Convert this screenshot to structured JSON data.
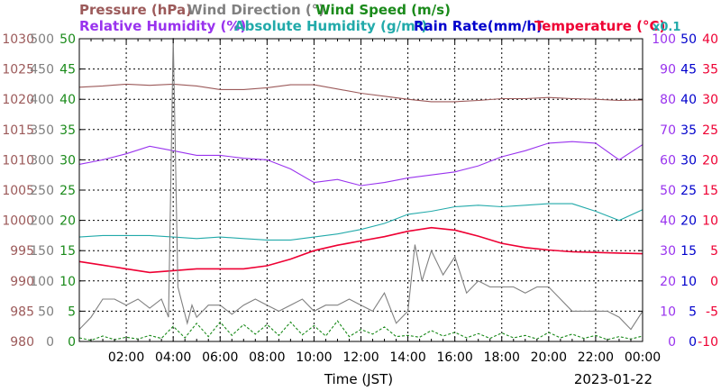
{
  "chart_data": {
    "type": "line",
    "date_label": "2023-01-22",
    "xlabel": "Time (JST)",
    "x_ticks": [
      "02:00",
      "04:00",
      "06:00",
      "08:00",
      "10:00",
      "12:00",
      "14:00",
      "16:00",
      "18:00",
      "20:00",
      "22:00",
      "00:00"
    ],
    "x_range_hours": [
      0,
      24
    ],
    "grid": true,
    "headers": {
      "row1": [
        {
          "key": "pressure",
          "text": "Pressure (hPa)",
          "color": "#9c5a5a"
        },
        {
          "key": "wind_dir",
          "text": "Wind Direction (°)",
          "color": "#808080"
        },
        {
          "key": "wind_speed",
          "text": "Wind Speed (m/s)",
          "color": "#1a8a1a"
        }
      ],
      "row2": [
        {
          "key": "rh",
          "text": "Relative Humidity (%)",
          "color": "#9933ee"
        },
        {
          "key": "ah",
          "text": "Absolute Humidity (g/m³)",
          "color": "#22aaaa"
        },
        {
          "key": "rain",
          "text": "Rain Rate(mm/h)",
          "color": "#0000cc"
        },
        {
          "key": "temp",
          "text": "Temperature (°C)",
          "color": "#ee0033"
        },
        {
          "key": "scale",
          "text": "x0.1",
          "color": "#22aaaa"
        }
      ]
    },
    "axes": {
      "pressure": {
        "ticks": [
          "1030",
          "1025",
          "1020",
          "1015",
          "1010",
          "1005",
          "1000",
          "995",
          "990",
          "985",
          "980"
        ],
        "ylim": [
          980,
          1030
        ],
        "color": "#9c5a5a"
      },
      "wind_dir": {
        "ticks": [
          "500",
          "450",
          "400",
          "350",
          "300",
          "250",
          "200",
          "150",
          "100",
          "50",
          "0"
        ],
        "ylim": [
          0,
          500
        ],
        "color": "#808080"
      },
      "wind_speed": {
        "ticks": [
          "50",
          "45",
          "40",
          "35",
          "30",
          "25",
          "20",
          "15",
          "10",
          "5",
          "0"
        ],
        "ylim": [
          0,
          50
        ],
        "color": "#1a8a1a"
      },
      "rh": {
        "ticks": [
          "100",
          "90",
          "80",
          "70",
          "60",
          "50",
          "40",
          "30",
          "20",
          "10",
          "0"
        ],
        "ylim": [
          0,
          100
        ],
        "color": "#9933ee"
      },
      "rain": {
        "ticks": [
          "50",
          "45",
          "40",
          "35",
          "30",
          "25",
          "20",
          "15",
          "10",
          "5",
          "0"
        ],
        "ylim": [
          0,
          50
        ],
        "color": "#0000cc"
      },
      "temp": {
        "ticks": [
          "40",
          "35",
          "30",
          "25",
          "20",
          "15",
          "10",
          "5",
          "0",
          "-5",
          "-10"
        ],
        "ylim": [
          -10,
          40
        ],
        "color": "#ee0033"
      }
    },
    "series": [
      {
        "name": "Pressure (hPa)",
        "key": "pressure",
        "axis": "pressure",
        "color": "#9c5a5a",
        "x": [
          0,
          1,
          2,
          3,
          4,
          5,
          6,
          7,
          8,
          9,
          10,
          11,
          12,
          13,
          14,
          15,
          16,
          17,
          18,
          19,
          20,
          21,
          22,
          23,
          24
        ],
        "values": [
          1022.0,
          1022.2,
          1022.5,
          1022.3,
          1022.5,
          1022.2,
          1021.6,
          1021.6,
          1021.9,
          1022.4,
          1022.4,
          1021.7,
          1021.0,
          1020.5,
          1020.0,
          1019.6,
          1019.6,
          1019.8,
          1020.1,
          1020.1,
          1020.3,
          1020.1,
          1020.0,
          1019.8,
          1019.9
        ]
      },
      {
        "name": "Relative Humidity (%)",
        "key": "rh",
        "axis": "rh",
        "color": "#9933ee",
        "x": [
          0,
          1,
          2,
          3,
          4,
          5,
          6,
          7,
          8,
          9,
          10,
          11,
          12,
          13,
          14,
          15,
          16,
          17,
          18,
          19,
          20,
          21,
          22,
          23,
          24
        ],
        "values": [
          58.5,
          60,
          62,
          64.5,
          63,
          61.5,
          61.5,
          60.5,
          60,
          57,
          52.5,
          53.5,
          51.5,
          52.5,
          54,
          55,
          56,
          58,
          61,
          63,
          65.5,
          66,
          65.5,
          60,
          65
        ]
      },
      {
        "name": "Absolute Humidity (g/m³)",
        "key": "ah",
        "axis": "rh",
        "color": "#22aaaa",
        "x": [
          0,
          1,
          2,
          3,
          4,
          5,
          6,
          7,
          8,
          9,
          10,
          11,
          12,
          13,
          14,
          15,
          16,
          17,
          18,
          19,
          20,
          21,
          22,
          23,
          24
        ],
        "values": [
          34.5,
          35,
          35,
          35,
          34.5,
          34,
          34.5,
          34,
          33.5,
          33.5,
          34.5,
          35.5,
          37,
          39,
          42,
          43,
          44.5,
          45,
          44.5,
          45,
          45.5,
          45.5,
          43,
          40,
          43.5
        ]
      },
      {
        "name": "Temperature (°C)",
        "key": "temp",
        "axis": "temp",
        "color": "#ee0033",
        "x": [
          0,
          1,
          2,
          3,
          4,
          5,
          6,
          7,
          8,
          9,
          10,
          11,
          12,
          13,
          14,
          15,
          16,
          17,
          18,
          19,
          20,
          21,
          22,
          23,
          24
        ],
        "values": [
          3.2,
          2.6,
          2.0,
          1.4,
          1.7,
          2.0,
          2.0,
          2.0,
          2.5,
          3.6,
          5.0,
          5.9,
          6.6,
          7.3,
          8.2,
          8.8,
          8.4,
          7.4,
          6.2,
          5.5,
          5.1,
          4.8,
          4.7,
          4.6,
          4.5
        ]
      },
      {
        "name": "Wind Direction (°)",
        "key": "wind_dir",
        "axis": "wind_dir",
        "color": "#808080",
        "x": [
          0,
          0.5,
          1,
          1.5,
          2,
          2.5,
          3,
          3.5,
          3.8,
          4,
          4.2,
          4.4,
          4.6,
          4.8,
          5,
          5.5,
          6,
          6.5,
          7,
          7.5,
          8,
          8.5,
          9,
          9.5,
          10,
          10.5,
          11,
          11.5,
          12,
          12.5,
          13,
          13.5,
          14,
          14.3,
          14.6,
          15,
          15.5,
          16,
          16.5,
          17,
          17.5,
          18,
          18.5,
          19,
          19.5,
          20,
          20.5,
          21,
          21.5,
          22,
          22.5,
          23,
          23.5,
          24
        ],
        "values": [
          20,
          40,
          70,
          70,
          60,
          70,
          55,
          70,
          40,
          620,
          90,
          60,
          30,
          60,
          40,
          60,
          60,
          45,
          60,
          70,
          60,
          50,
          60,
          70,
          50,
          60,
          60,
          70,
          60,
          50,
          80,
          30,
          50,
          160,
          100,
          150,
          110,
          140,
          80,
          100,
          90,
          90,
          90,
          80,
          90,
          90,
          70,
          50,
          50,
          50,
          50,
          40,
          20,
          50
        ]
      },
      {
        "name": "Wind Speed (m/s)",
        "key": "wind_speed",
        "axis": "wind_speed",
        "color": "#1a8a1a",
        "x": [
          0,
          0.5,
          1,
          1.5,
          2,
          2.5,
          3,
          3.5,
          4,
          4.5,
          5,
          5.5,
          6,
          6.5,
          7,
          7.5,
          8,
          8.5,
          9,
          9.5,
          10,
          10.5,
          11,
          11.5,
          12,
          12.5,
          13,
          13.5,
          14,
          14.5,
          15,
          15.5,
          16,
          16.5,
          17,
          17.5,
          18,
          18.5,
          19,
          19.5,
          20,
          20.5,
          21,
          21.5,
          22,
          22.5,
          23,
          23.5,
          24
        ],
        "values": [
          0.6,
          0.2,
          0.9,
          0.3,
          0.7,
          0.4,
          1.0,
          0.5,
          2.5,
          0.6,
          3.0,
          0.8,
          3.2,
          1.0,
          2.8,
          1.2,
          2.8,
          1.0,
          3.2,
          1.1,
          2.6,
          0.9,
          3.4,
          0.8,
          2.0,
          1.2,
          2.4,
          0.8,
          1.0,
          0.7,
          1.8,
          0.9,
          1.5,
          0.6,
          1.3,
          0.5,
          1.4,
          0.6,
          1.0,
          0.4,
          1.5,
          0.6,
          1.2,
          0.5,
          1.0,
          0.3,
          0.8,
          0.4,
          0.9
        ]
      },
      {
        "name": "Rain Rate(mm/h)",
        "key": "rain",
        "axis": "rain",
        "color": "#0000cc",
        "x": [
          0,
          24
        ],
        "values": [
          0,
          0
        ]
      }
    ]
  }
}
